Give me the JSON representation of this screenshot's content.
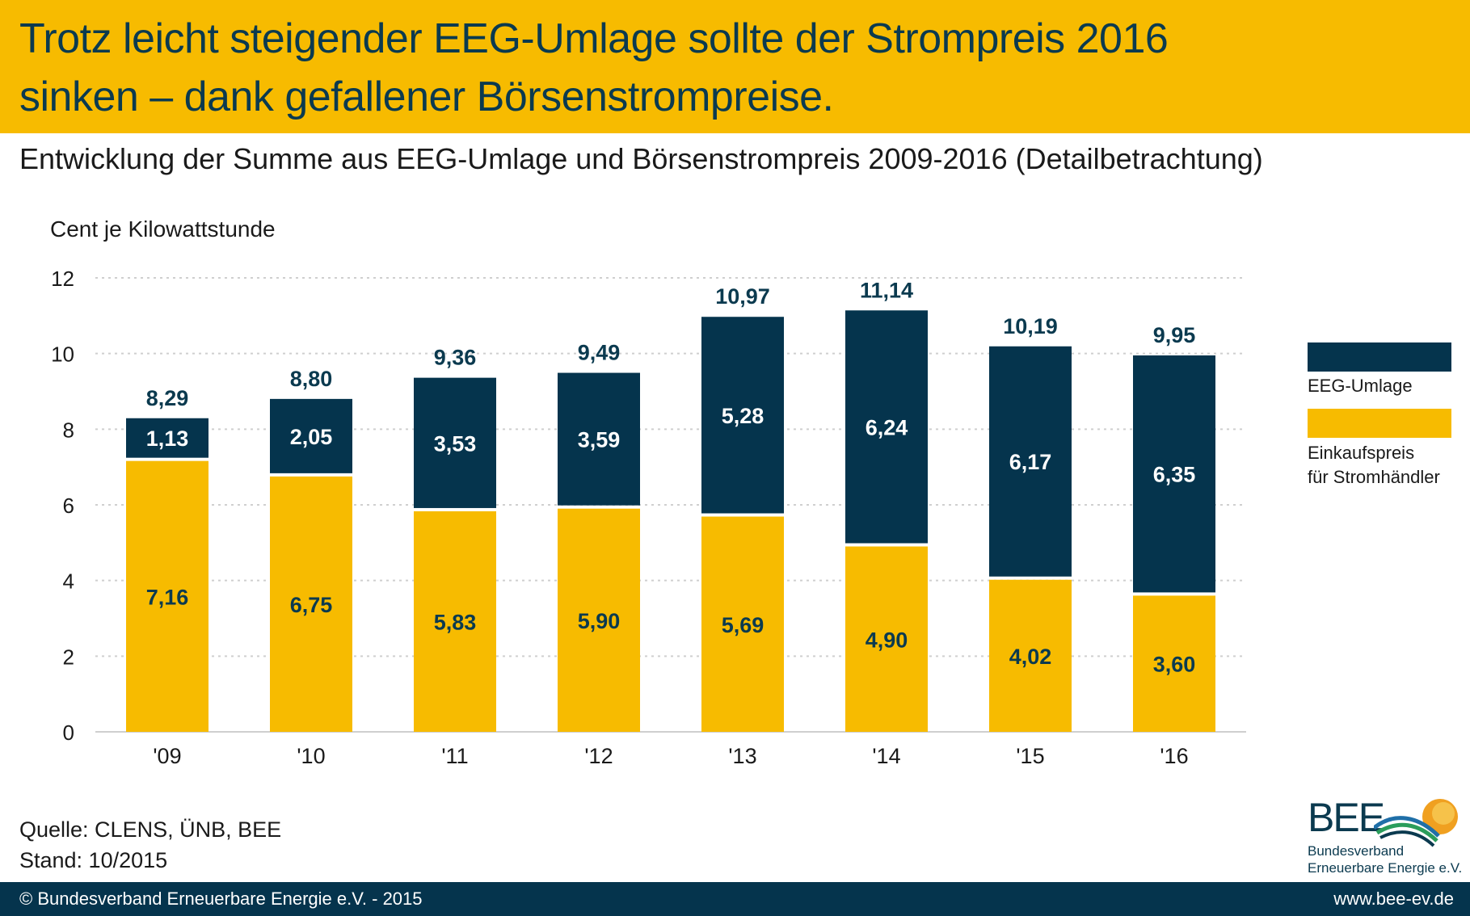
{
  "header": {
    "title_line1": "Trotz leicht steigender EEG-Umlage sollte der Strompreis 2016",
    "title_line2": "sinken – dank gefallener Börsenstrompreise."
  },
  "subtitle": "Entwicklung der Summe aus EEG-Umlage und Börsenstrompreis 2009-2016 (Detailbetrachtung)",
  "colors": {
    "banner": "#f7bb00",
    "eeg": "#05344d",
    "einkauf": "#f7bb00",
    "title_text": "#0b3a4f"
  },
  "chart_data": {
    "type": "bar",
    "stacked": true,
    "ylabel": "Cent je Kilowattstunde",
    "ylim": [
      0,
      12
    ],
    "yticks": [
      "0",
      "2",
      "4",
      "6",
      "8",
      "10",
      "12"
    ],
    "categories": [
      "'09",
      "'10",
      "'11",
      "'12",
      "'13",
      "'14",
      "'15",
      "'16"
    ],
    "series": [
      {
        "name": "Einkaufspreis für Stromhändler",
        "values": [
          7.16,
          6.75,
          5.83,
          5.9,
          5.69,
          4.9,
          4.02,
          3.6
        ],
        "labels": [
          "7,16",
          "6,75",
          "5,83",
          "5,90",
          "5,69",
          "4,90",
          "4,02",
          "3,60"
        ]
      },
      {
        "name": "EEG-Umlage",
        "values": [
          1.13,
          2.05,
          3.53,
          3.59,
          5.28,
          6.24,
          6.17,
          6.35
        ],
        "labels": [
          "1,13",
          "2,05",
          "3,53",
          "3,59",
          "5,28",
          "6,24",
          "6,17",
          "6,35"
        ]
      }
    ],
    "totals": [
      8.29,
      8.8,
      9.36,
      9.49,
      10.97,
      11.14,
      10.19,
      9.95
    ],
    "total_labels": [
      "8,29",
      "8,80",
      "9,36",
      "9,49",
      "10,97",
      "11,14",
      "10,19",
      "9,95"
    ],
    "grid": true,
    "legend_position": "right"
  },
  "legend": {
    "eeg_label": "EEG-Umlage",
    "einkauf_line1": "Einkaufspreis",
    "einkauf_line2": "für Stromhändler"
  },
  "source": {
    "line1": "Quelle: CLENS, ÜNB, BEE",
    "line2": "Stand: 10/2015"
  },
  "logo": {
    "text": "BEE",
    "sub_line1": "Bundesverband",
    "sub_line2": "Erneuerbare Energie e.V."
  },
  "footer": {
    "copyright": "© Bundesverband Erneuerbare Energie e.V. - 2015",
    "url": "www.bee-ev.de"
  }
}
